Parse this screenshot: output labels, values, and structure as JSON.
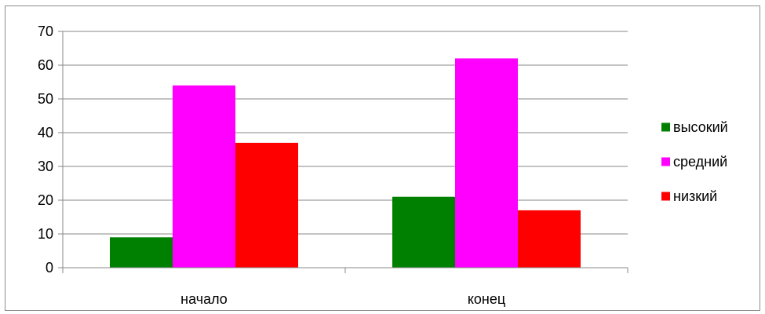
{
  "chart_data": {
    "type": "bar",
    "categories": [
      "начало",
      "конец"
    ],
    "series": [
      {
        "name": "высокий",
        "values": [
          9,
          21
        ],
        "color": "#008000"
      },
      {
        "name": "средний",
        "values": [
          54,
          62
        ],
        "color": "#ff00ff"
      },
      {
        "name": "низкий",
        "values": [
          37,
          17
        ],
        "color": "#ff0000"
      }
    ],
    "title": "",
    "xlabel": "",
    "ylabel": "",
    "ylim": [
      0,
      70
    ],
    "yticks": [
      0,
      10,
      20,
      30,
      40,
      50,
      60,
      70
    ],
    "grid": true,
    "legend_position": "right"
  }
}
